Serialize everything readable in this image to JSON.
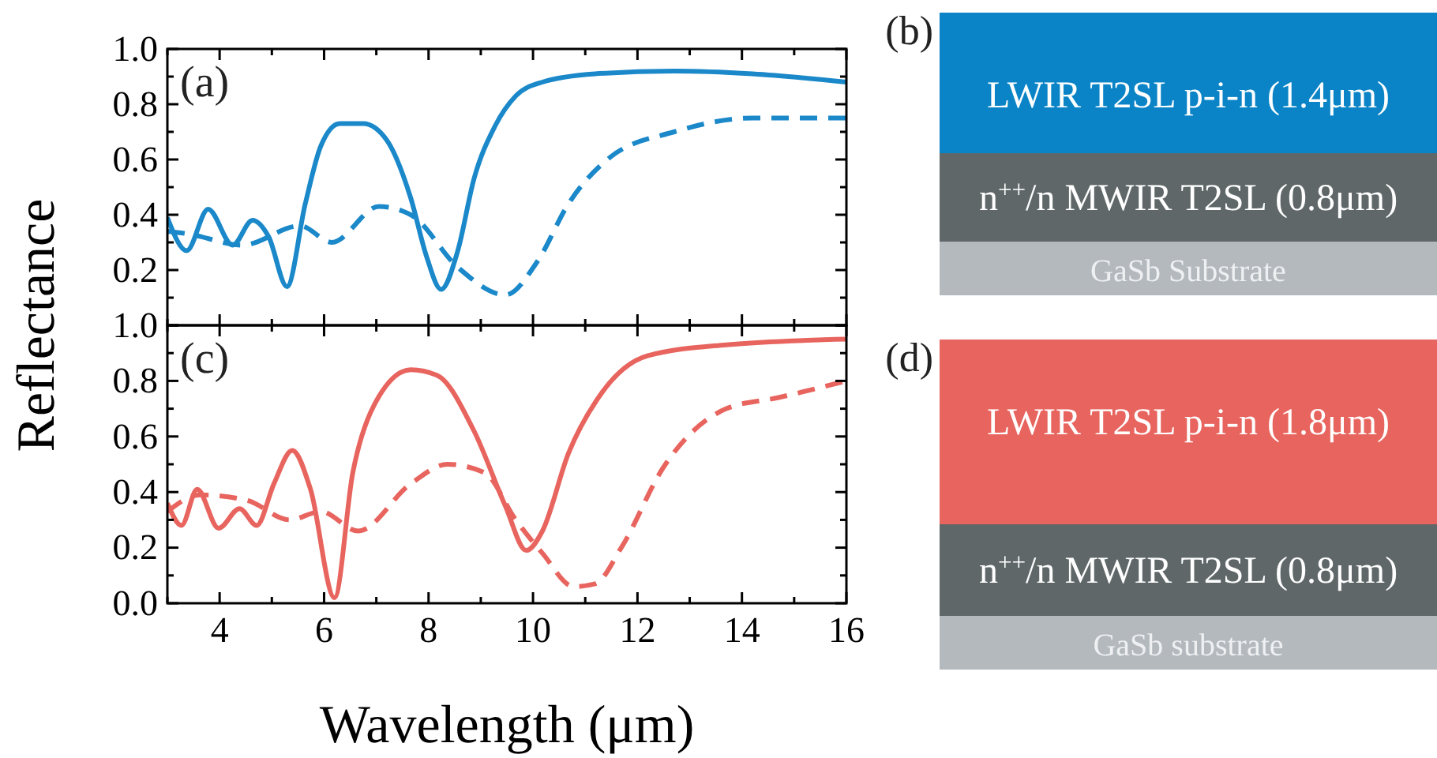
{
  "chart_data": [
    {
      "type": "line",
      "annotations": [
        "(a)"
      ],
      "xlim": [
        3,
        16
      ],
      "ylim": [
        0,
        1
      ],
      "tick_labels": "y",
      "marker": "none",
      "xticks": [
        {
          "value": 3,
          "label": null
        },
        {
          "value": 4,
          "label": null
        },
        {
          "value": 5,
          "label": null
        },
        {
          "value": 6,
          "label": null
        },
        {
          "value": 7,
          "label": null
        },
        {
          "value": 8,
          "label": null
        },
        {
          "value": 9,
          "label": null
        },
        {
          "value": 10,
          "label": null
        },
        {
          "value": 11,
          "label": null
        },
        {
          "value": 12,
          "label": null
        },
        {
          "value": 13,
          "label": null
        },
        {
          "value": 14,
          "label": null
        },
        {
          "value": 15,
          "label": null
        },
        {
          "value": 16,
          "label": null
        }
      ],
      "yticks": [
        {
          "value": 0,
          "label": null
        },
        {
          "value": 0.1,
          "label": null
        },
        0.2,
        {
          "value": 0.3,
          "label": null
        },
        0.4,
        {
          "value": 0.5,
          "label": null
        },
        0.6,
        {
          "value": 0.7,
          "label": null
        },
        0.8,
        {
          "value": 0.9,
          "label": null
        },
        {
          "value": 1,
          "label": "1.0"
        }
      ],
      "series": [
        {
          "color": "#1a88c9",
          "line_style": "solid",
          "x": [
            3.0,
            3.37,
            3.78,
            4.25,
            4.63,
            4.94,
            5.29,
            5.64,
            5.94,
            6.3,
            6.75,
            7.2,
            7.66,
            7.96,
            8.24,
            8.56,
            8.87,
            9.27,
            9.67,
            10.18,
            11.19,
            12.7,
            14.2,
            16
          ],
          "values": [
            0.39,
            0.27,
            0.42,
            0.29,
            0.38,
            0.32,
            0.14,
            0.44,
            0.65,
            0.73,
            0.73,
            0.67,
            0.46,
            0.25,
            0.13,
            0.27,
            0.53,
            0.72,
            0.83,
            0.88,
            0.91,
            0.92,
            0.91,
            0.88
          ]
        },
        {
          "color": "#1a88c9",
          "line_style": "dashed",
          "x": [
            3.0,
            3.42,
            4.43,
            5.54,
            6.15,
            7.05,
            7.66,
            8.56,
            9.47,
            10.08,
            10.68,
            11.49,
            12.7,
            14.2,
            16
          ],
          "values": [
            0.34,
            0.33,
            0.29,
            0.36,
            0.3,
            0.43,
            0.4,
            0.21,
            0.11,
            0.23,
            0.44,
            0.61,
            0.7,
            0.75,
            0.75
          ]
        }
      ]
    },
    {
      "type": "other",
      "annotations": [
        "(b)",
        "LWIR T2SL p-i-n (1.4μm)",
        "n$^{++}$/n MWIR T2SL (0.8μm)",
        "GaSb Substrate"
      ],
      "colors": [
        "#0a84c6",
        "#5f6769",
        "#b4b9bd"
      ]
    },
    {
      "type": "line",
      "annotations": [
        "(c)"
      ],
      "xlabel": "Wavelength (μm)",
      "ylabel": "Reflectance",
      "xlim": [
        3,
        16
      ],
      "ylim": [
        0,
        1
      ],
      "marker": "none",
      "xticks": [
        {
          "value": 3,
          "label": null
        },
        4,
        {
          "value": 5,
          "label": null
        },
        6,
        {
          "value": 7,
          "label": null
        },
        8,
        {
          "value": 9,
          "label": null
        },
        10,
        {
          "value": 11,
          "label": null
        },
        12,
        {
          "value": 13,
          "label": null
        },
        14,
        {
          "value": 15,
          "label": null
        },
        16
      ],
      "yticks": [
        {
          "value": 0,
          "label": "0.0"
        },
        {
          "value": 0.1,
          "label": null
        },
        0.2,
        {
          "value": 0.3,
          "label": null
        },
        0.4,
        {
          "value": 0.5,
          "label": null
        },
        0.6,
        {
          "value": 0.7,
          "label": null
        },
        0.8,
        {
          "value": 0.9,
          "label": null
        },
        {
          "value": 1,
          "label": "1.0"
        }
      ],
      "series": [
        {
          "color": "#e8645e",
          "line_style": "solid",
          "x": [
            3.0,
            3.27,
            3.57,
            3.98,
            4.38,
            4.71,
            5.04,
            5.39,
            5.74,
            6.2,
            6.55,
            6.95,
            7.66,
            8.16,
            8.87,
            9.47,
            9.87,
            10.18,
            10.68,
            11.29,
            12.19,
            13.7,
            16
          ],
          "values": [
            0.36,
            0.28,
            0.41,
            0.27,
            0.34,
            0.28,
            0.43,
            0.55,
            0.41,
            0.02,
            0.47,
            0.71,
            0.84,
            0.82,
            0.62,
            0.35,
            0.19,
            0.26,
            0.54,
            0.75,
            0.89,
            0.93,
            0.95
          ]
        },
        {
          "color": "#e8645e",
          "line_style": "dashed",
          "x": [
            3.0,
            3.63,
            4.53,
            5.34,
            5.94,
            6.65,
            7.66,
            8.36,
            9.07,
            9.67,
            10.18,
            10.78,
            11.19,
            11.69,
            12.5,
            13.7,
            14.7,
            16
          ],
          "values": [
            0.33,
            0.39,
            0.37,
            0.3,
            0.33,
            0.26,
            0.43,
            0.5,
            0.47,
            0.3,
            0.18,
            0.06,
            0.07,
            0.2,
            0.49,
            0.7,
            0.74,
            0.8
          ]
        }
      ]
    },
    {
      "type": "other",
      "annotations": [
        "(d)",
        "LWIR T2SL p-i-n (1.8μm)",
        "n$^{++}$/n MWIR T2SL (0.8μm)",
        "GaSb substrate"
      ],
      "colors": [
        "#e8645e",
        "#5f6769",
        "#b4b9bd"
      ]
    }
  ]
}
